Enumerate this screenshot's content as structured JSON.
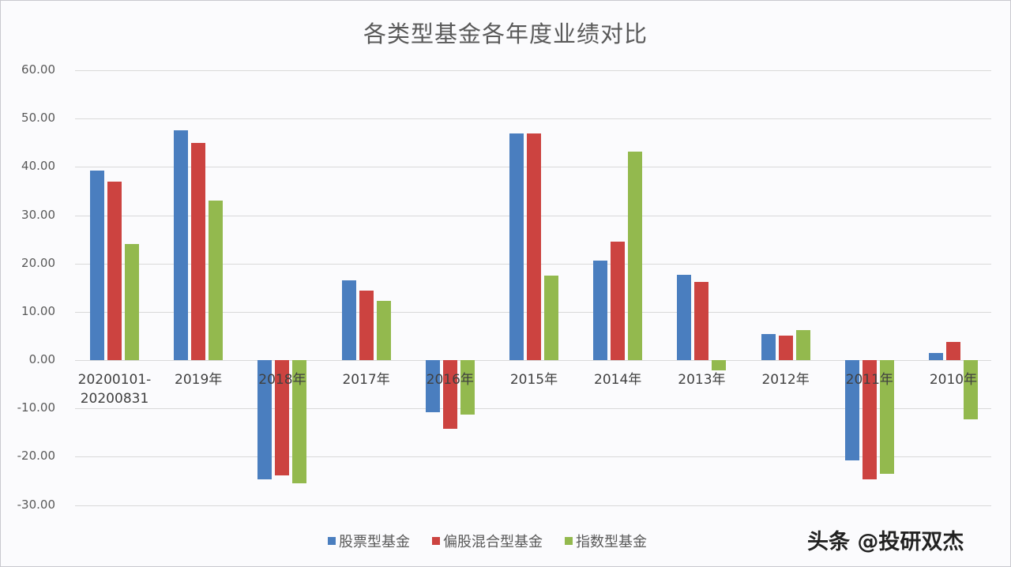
{
  "chart_data": {
    "type": "bar",
    "title": "各类型基金各年度业绩对比",
    "xlabel": "",
    "ylabel": "",
    "ylim": [
      -30,
      60
    ],
    "yticks": [
      "60.00",
      "50.00",
      "40.00",
      "30.00",
      "20.00",
      "10.00",
      "0.00",
      "-10.00",
      "-20.00",
      "-30.00"
    ],
    "grid": true,
    "legend_position": "bottom",
    "categories": [
      "20200101-20200831",
      "2019年",
      "2018年",
      "2017年",
      "2016年",
      "2015年",
      "2014年",
      "2013年",
      "2012年",
      "2011年",
      "2010年"
    ],
    "series": [
      {
        "name": "股票型基金",
        "color": "#4a7ebf",
        "values": [
          39.2,
          47.5,
          -24.7,
          16.5,
          -10.8,
          46.9,
          20.6,
          17.6,
          5.4,
          -20.7,
          1.5
        ]
      },
      {
        "name": "偏股混合型基金",
        "color": "#cc4340",
        "values": [
          36.9,
          44.9,
          -23.9,
          14.4,
          -14.2,
          46.9,
          24.5,
          16.2,
          5.1,
          -24.7,
          3.8
        ]
      },
      {
        "name": "指数型基金",
        "color": "#93b94e",
        "values": [
          24.0,
          33.0,
          -25.5,
          12.3,
          -11.3,
          17.5,
          43.1,
          -2.1,
          6.2,
          -23.5,
          -12.3
        ]
      }
    ]
  },
  "watermark": "头条 @投研双杰"
}
